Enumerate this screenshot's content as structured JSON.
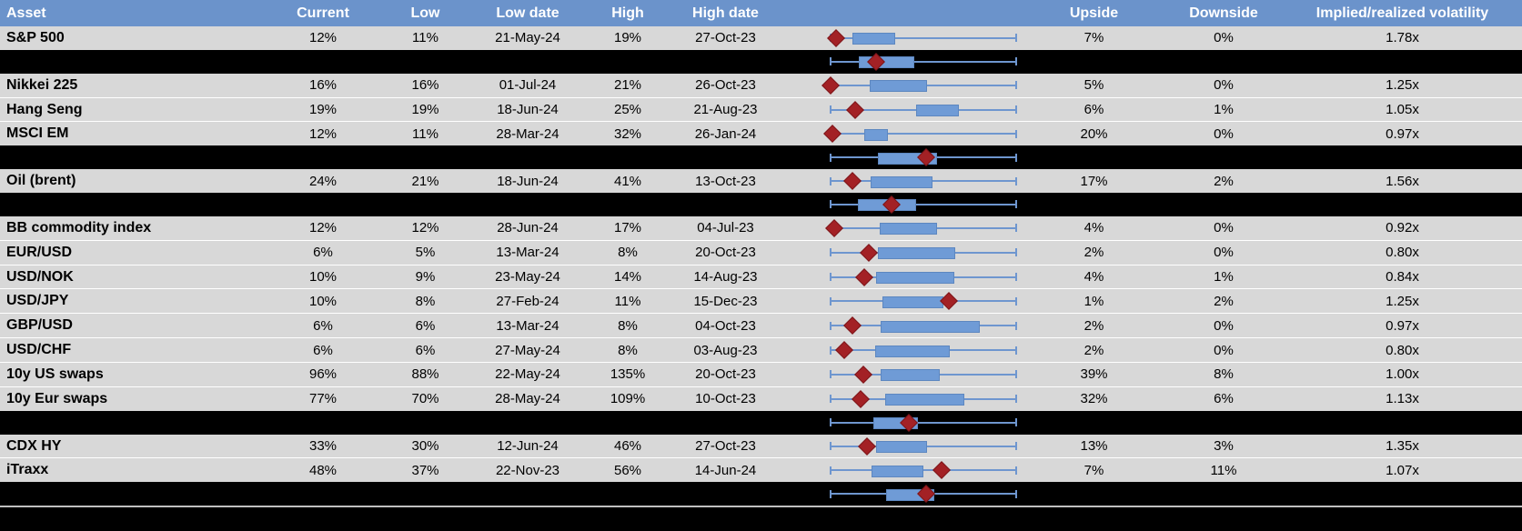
{
  "colors": {
    "header_bg": "#6B93CB",
    "header_text": "#FFFFFF",
    "row_bg": "#D8D8D8",
    "summary_row_bg": "#000000",
    "box_fill": "#6F9BD6",
    "whisker": "#6E96CF",
    "diamond": "#A32125",
    "bottom_divider": "#C0C0C0",
    "text": "#000000"
  },
  "header": {
    "asset": "Asset",
    "current": "Current",
    "low": "Low",
    "low_date": "Low date",
    "high": "High",
    "high_date": "High date",
    "upside": "Upside",
    "downside": "Downside",
    "implied_realized": "Implied/realized volatility"
  },
  "table": {
    "rows": [
      {
        "type": "data",
        "label": "S&P 500",
        "current": "12%",
        "low": "11%",
        "low_date": "21-May-24",
        "high": "19%",
        "high_date": "27-Oct-23",
        "upside": "7%",
        "downside": "0%",
        "implied_realized": "1.78x",
        "box_start": 0.12,
        "box_end": 0.34,
        "marker": 0.03
      },
      {
        "type": "summary",
        "box_start": 0.15,
        "box_end": 0.44,
        "marker": 0.245
      },
      {
        "type": "data",
        "label": "Nikkei 225",
        "current": "16%",
        "low": "16%",
        "low_date": "01-Jul-24",
        "high": "21%",
        "high_date": "26-Oct-23",
        "upside": "5%",
        "downside": "0%",
        "implied_realized": "1.25x",
        "box_start": 0.21,
        "box_end": 0.51,
        "marker": 0.0
      },
      {
        "type": "data",
        "label": "Hang Seng",
        "current": "19%",
        "low": "19%",
        "low_date": "18-Jun-24",
        "high": "25%",
        "high_date": "21-Aug-23",
        "upside": "6%",
        "downside": "1%",
        "implied_realized": "1.05x",
        "box_start": 0.46,
        "box_end": 0.68,
        "marker": 0.13
      },
      {
        "type": "data",
        "label": "MSCI EM",
        "current": "12%",
        "low": "11%",
        "low_date": "28-Mar-24",
        "high": "32%",
        "high_date": "26-Jan-24",
        "upside": "20%",
        "downside": "0%",
        "implied_realized": "0.97x",
        "box_start": 0.18,
        "box_end": 0.3,
        "marker": 0.01
      },
      {
        "type": "summary",
        "box_start": 0.255,
        "box_end": 0.565,
        "marker": 0.515
      },
      {
        "type": "data",
        "label": "Oil (brent)",
        "current": "24%",
        "low": "21%",
        "low_date": "18-Jun-24",
        "high": "41%",
        "high_date": "13-Oct-23",
        "upside": "17%",
        "downside": "2%",
        "implied_realized": "1.56x",
        "box_start": 0.215,
        "box_end": 0.54,
        "marker": 0.12
      },
      {
        "type": "summary",
        "box_start": 0.147,
        "box_end": 0.45,
        "marker": 0.33
      },
      {
        "type": "data",
        "label": "BB commodity index",
        "current": "12%",
        "low": "12%",
        "low_date": "28-Jun-24",
        "high": "17%",
        "high_date": "04-Jul-23",
        "upside": "4%",
        "downside": "0%",
        "implied_realized": "0.92x",
        "box_start": 0.265,
        "box_end": 0.565,
        "marker": 0.02
      },
      {
        "type": "data",
        "label": "EUR/USD",
        "current": "6%",
        "low": "5%",
        "low_date": "13-Mar-24",
        "high": "8%",
        "high_date": "20-Oct-23",
        "upside": "2%",
        "downside": "0%",
        "implied_realized": "0.80x",
        "box_start": 0.255,
        "box_end": 0.66,
        "marker": 0.205
      },
      {
        "type": "data",
        "label": "USD/NOK",
        "current": "10%",
        "low": "9%",
        "low_date": "23-May-24",
        "high": "14%",
        "high_date": "14-Aug-23",
        "upside": "4%",
        "downside": "1%",
        "implied_realized": "0.84x",
        "box_start": 0.245,
        "box_end": 0.655,
        "marker": 0.18
      },
      {
        "type": "data",
        "label": "USD/JPY",
        "current": "10%",
        "low": "8%",
        "low_date": "27-Feb-24",
        "high": "11%",
        "high_date": "15-Dec-23",
        "upside": "1%",
        "downside": "2%",
        "implied_realized": "1.25x",
        "box_start": 0.28,
        "box_end": 0.6,
        "marker": 0.637
      },
      {
        "type": "data",
        "label": "GBP/USD",
        "current": "6%",
        "low": "6%",
        "low_date": "13-Mar-24",
        "high": "8%",
        "high_date": "04-Oct-23",
        "upside": "2%",
        "downside": "0%",
        "implied_realized": "0.97x",
        "box_start": 0.27,
        "box_end": 0.795,
        "marker": 0.12
      },
      {
        "type": "data",
        "label": "USD/CHF",
        "current": "6%",
        "low": "6%",
        "low_date": "27-May-24",
        "high": "8%",
        "high_date": "03-Aug-23",
        "upside": "2%",
        "downside": "0%",
        "implied_realized": "0.80x",
        "box_start": 0.24,
        "box_end": 0.63,
        "marker": 0.075
      },
      {
        "type": "data",
        "label": "10y US swaps",
        "current": "96%",
        "low": "88%",
        "low_date": "22-May-24",
        "high": "135%",
        "high_date": "20-Oct-23",
        "upside": "39%",
        "downside": "8%",
        "implied_realized": "1.00x",
        "box_start": 0.27,
        "box_end": 0.58,
        "marker": 0.176
      },
      {
        "type": "data",
        "label": "10y Eur swaps",
        "current": "77%",
        "low": "70%",
        "low_date": "28-May-24",
        "high": "109%",
        "high_date": "10-Oct-23",
        "upside": "32%",
        "downside": "6%",
        "implied_realized": "1.13x",
        "box_start": 0.295,
        "box_end": 0.71,
        "marker": 0.16
      },
      {
        "type": "summary",
        "box_start": 0.23,
        "box_end": 0.46,
        "marker": 0.42
      },
      {
        "type": "data",
        "label": "CDX HY",
        "current": "33%",
        "low": "30%",
        "low_date": "12-Jun-24",
        "high": "46%",
        "high_date": "27-Oct-23",
        "upside": "13%",
        "downside": "3%",
        "implied_realized": "1.35x",
        "box_start": 0.245,
        "box_end": 0.51,
        "marker": 0.196
      },
      {
        "type": "data",
        "label": "iTraxx",
        "current": "48%",
        "low": "37%",
        "low_date": "22-Nov-23",
        "high": "56%",
        "high_date": "14-Jun-24",
        "upside": "7%",
        "downside": "11%",
        "implied_realized": "1.07x",
        "box_start": 0.22,
        "box_end": 0.49,
        "marker": 0.6
      },
      {
        "type": "summary",
        "box_start": 0.3,
        "box_end": 0.55,
        "marker": 0.515
      },
      {
        "type": "blank"
      }
    ]
  },
  "chart_data": {
    "type": "boxplot",
    "orientation": "horizontal",
    "scale": "normalized position along each row's whisker span: 0 = left whisker cap, 1 = right whisker cap",
    "whiskers": [
      0,
      1
    ],
    "series": [
      {
        "name": "S&P 500",
        "box": [
          0.12,
          0.34
        ],
        "marker": 0.03
      },
      {
        "name": "unlabeled-summary-1",
        "box": [
          0.15,
          0.44
        ],
        "marker": 0.245
      },
      {
        "name": "Nikkei 225",
        "box": [
          0.21,
          0.51
        ],
        "marker": 0.0
      },
      {
        "name": "Hang Seng",
        "box": [
          0.46,
          0.68
        ],
        "marker": 0.13
      },
      {
        "name": "MSCI EM",
        "box": [
          0.18,
          0.3
        ],
        "marker": 0.01
      },
      {
        "name": "unlabeled-summary-2",
        "box": [
          0.255,
          0.565
        ],
        "marker": 0.515
      },
      {
        "name": "Oil (brent)",
        "box": [
          0.215,
          0.54
        ],
        "marker": 0.12
      },
      {
        "name": "unlabeled-summary-3",
        "box": [
          0.147,
          0.45
        ],
        "marker": 0.33
      },
      {
        "name": "BB commodity index",
        "box": [
          0.265,
          0.565
        ],
        "marker": 0.02
      },
      {
        "name": "EUR/USD",
        "box": [
          0.255,
          0.66
        ],
        "marker": 0.205
      },
      {
        "name": "USD/NOK",
        "box": [
          0.245,
          0.655
        ],
        "marker": 0.18
      },
      {
        "name": "USD/JPY",
        "box": [
          0.28,
          0.6
        ],
        "marker": 0.637
      },
      {
        "name": "GBP/USD",
        "box": [
          0.27,
          0.795
        ],
        "marker": 0.12
      },
      {
        "name": "USD/CHF",
        "box": [
          0.24,
          0.63
        ],
        "marker": 0.075
      },
      {
        "name": "10y US swaps",
        "box": [
          0.27,
          0.58
        ],
        "marker": 0.176
      },
      {
        "name": "10y Eur swaps",
        "box": [
          0.295,
          0.71
        ],
        "marker": 0.16
      },
      {
        "name": "unlabeled-summary-4",
        "box": [
          0.23,
          0.46
        ],
        "marker": 0.42
      },
      {
        "name": "CDX HY",
        "box": [
          0.245,
          0.51
        ],
        "marker": 0.196
      },
      {
        "name": "iTraxx",
        "box": [
          0.22,
          0.49
        ],
        "marker": 0.6
      },
      {
        "name": "unlabeled-summary-5",
        "box": [
          0.3,
          0.55
        ],
        "marker": 0.515
      }
    ]
  }
}
